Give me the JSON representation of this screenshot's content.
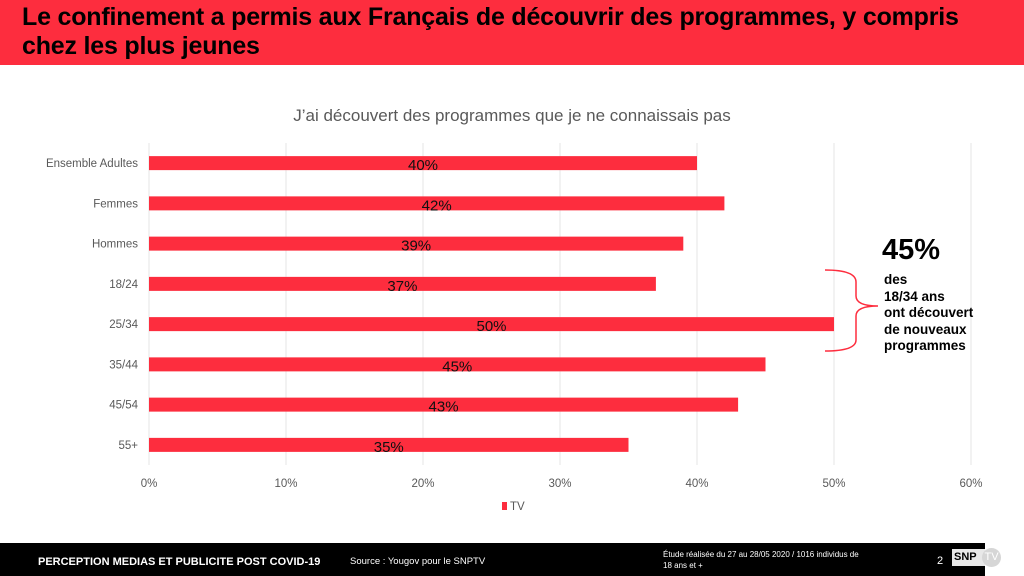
{
  "header": {
    "title": "Le confinement a permis aux Français de découvrir des programmes, y compris chez les plus jeunes"
  },
  "chart_data": {
    "type": "bar",
    "orientation": "horizontal",
    "title": "J’ai découvert des programmes que je ne connaissais pas",
    "categories": [
      "Ensemble Adultes",
      "Femmes",
      "Hommes",
      "18/24",
      "25/34",
      "35/44",
      "45/54",
      "55+"
    ],
    "series": [
      {
        "name": "TV",
        "values": [
          40,
          42,
          39,
          37,
          50,
          45,
          43,
          35
        ],
        "labels": [
          "40%",
          "42%",
          "39%",
          "37%",
          "50%",
          "45%",
          "43%",
          "35%"
        ],
        "color": "#fd2d3e"
      }
    ],
    "xlim": [
      0,
      60
    ],
    "xticks": [
      0,
      10,
      20,
      30,
      40,
      50,
      60
    ],
    "xtick_labels": [
      "0%",
      "10%",
      "20%",
      "30%",
      "40%",
      "50%",
      "60%"
    ],
    "grid": true,
    "legend": {
      "position": "bottom",
      "entries": [
        "TV"
      ]
    }
  },
  "callout": {
    "value": "45%",
    "lines": [
      "des",
      "18/34 ans",
      "ont découvert",
      "de nouveaux",
      "programmes"
    ],
    "bracket_color": "#fd2d3e"
  },
  "footer": {
    "left": "PERCEPTION MEDIAS ET PUBLICITE POST COVID-19",
    "source": "Source : Yougov pour le SNPTV",
    "study_line1": "Étude réalisée du 27 au 28/05 2020 / 1016 individus de",
    "study_line2": "18 ans et +",
    "page": "2",
    "logo_left": "SNP",
    "logo_right": "TV"
  },
  "colors": {
    "accent": "#fd2d3e",
    "footer_bg": "#000000",
    "grid": "#e6e6e6",
    "axis_text": "#595959"
  }
}
